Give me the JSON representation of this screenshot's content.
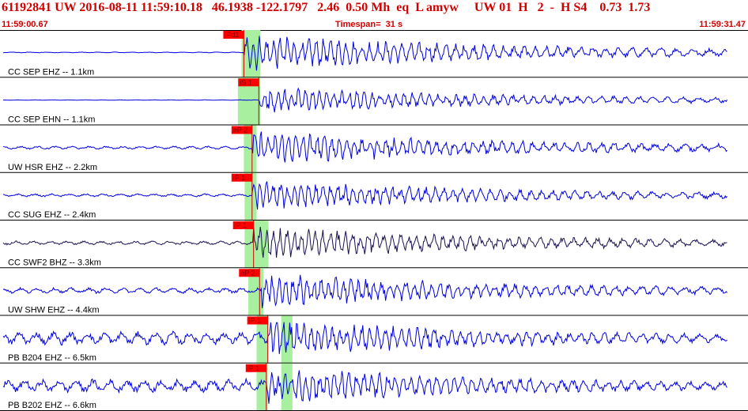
{
  "header": {
    "title": "61192841 UW 2016-08-11 11:59:10.18   46.1938 -122.1797   2.46  0.50 Mh  eq  L amyw     UW 01  H   2  -  H S4    0.73  1.73",
    "start_time": "11:59:00.67",
    "timespan": "Timespan=  31 s",
    "end_time": "11:59:31.47"
  },
  "colors": {
    "header_text": "#d00000",
    "trace": "#0000e0",
    "trace_dark": "#1a1050",
    "pick_box": "#ff0000",
    "pick_line": "#cc0000",
    "window": "#a8f0a0",
    "divider": "#000000"
  },
  "traces": [
    {
      "label": "CC SEP EHZ -- 1.1km",
      "pick": "iPd1",
      "pick_t": 0.326,
      "windows": [
        [
          0.323,
          0.348
        ]
      ],
      "amp": 0.85,
      "noise": 0.02,
      "color": "trace"
    },
    {
      "label": "CC SEP EHN -- 1.1km",
      "pick": "iS 1",
      "pick_t": 0.346,
      "windows": [
        [
          0.318,
          0.348
        ]
      ],
      "amp": 0.6,
      "noise": 0.01,
      "color": "trace"
    },
    {
      "label": "UW HSR EHZ -- 2.2km",
      "pick": "eP 2",
      "pick_t": 0.337,
      "windows": [
        [
          0.326,
          0.343
        ]
      ],
      "amp": 0.8,
      "noise": 0.08,
      "color": "trace"
    },
    {
      "label": "CC SUG EHZ -- 2.4km",
      "pick": "iP 1",
      "pick_t": 0.337,
      "windows": [
        [
          0.327,
          0.343
        ]
      ],
      "amp": 0.7,
      "noise": 0.08,
      "color": "trace"
    },
    {
      "label": "CC SWF2 BHZ -- 3.3km",
      "pick": "iP 1",
      "pick_t": 0.339,
      "windows": [
        [
          0.327,
          0.359
        ]
      ],
      "amp": 0.75,
      "noise": 0.1,
      "color": "trace_dark"
    },
    {
      "label": "UW SHW EHZ -- 4.4km",
      "pick": "eP 2",
      "pick_t": 0.347,
      "windows": [
        [
          0.332,
          0.352
        ]
      ],
      "amp": 0.8,
      "noise": 0.15,
      "color": "trace"
    },
    {
      "label": "PB B204 EHZ -- 6.5km",
      "pick": "iP 1",
      "pick_t": 0.358,
      "windows": [
        [
          0.343,
          0.358
        ],
        [
          0.376,
          0.391
        ]
      ],
      "amp": 0.85,
      "noise": 0.35,
      "color": "trace"
    },
    {
      "label": "PB B202 EHZ -- 6.6km",
      "pick": "iP 1",
      "pick_t": 0.356,
      "windows": [
        [
          0.343,
          0.358
        ],
        [
          0.376,
          0.391
        ]
      ],
      "amp": 0.85,
      "noise": 0.35,
      "color": "trace"
    }
  ]
}
